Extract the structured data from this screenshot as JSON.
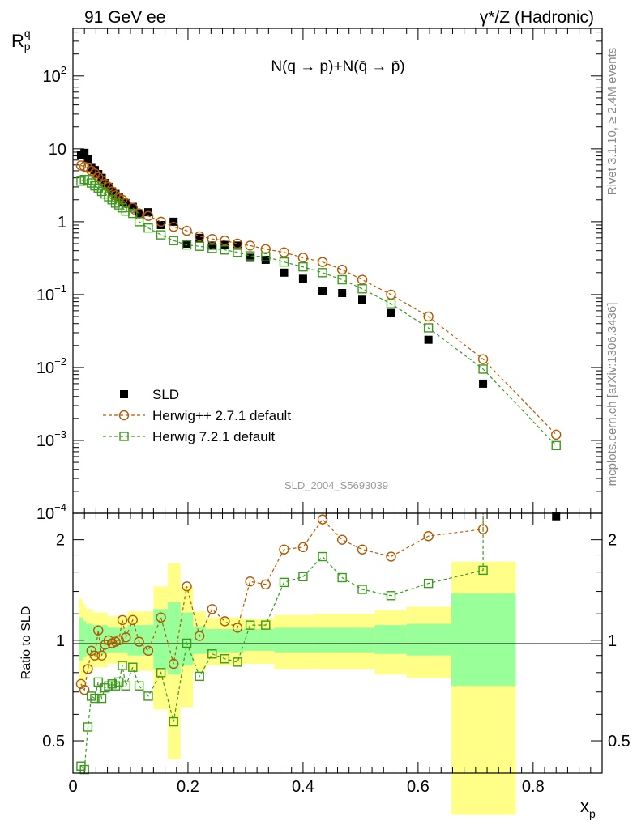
{
  "header": {
    "left": "91 GeV ee",
    "right": "γ*/Z (Hadronic)"
  },
  "side_text": {
    "rivet": "Rivet 3.1.10, ≥ 2.4M events",
    "mcplots": "mcplots.cern.ch [arXiv:1306.3436]"
  },
  "watermark": "SLD_2004_S5693039",
  "chart_data": [
    {
      "type": "scatter",
      "panel": "main",
      "title": "N(q → p)+N(q̄ → p̄)",
      "ylabel": "R",
      "ylabel_sup": "q",
      "ylabel_sub": "p",
      "y_scale": "log",
      "xlim": [
        0,
        0.92
      ],
      "ylim": [
        0.0001,
        450
      ],
      "y_ticks": [
        {
          "value": 0.0001,
          "base": "10",
          "exp": "−4"
        },
        {
          "value": 0.001,
          "base": "10",
          "exp": "−3"
        },
        {
          "value": 0.01,
          "base": "10",
          "exp": "−2"
        },
        {
          "value": 0.1,
          "base": "10",
          "exp": "−1"
        },
        {
          "value": 1,
          "base": "1",
          "exp": ""
        },
        {
          "value": 10,
          "base": "10",
          "exp": ""
        },
        {
          "value": 100,
          "base": "10",
          "exp": "2"
        }
      ],
      "legend_position": "lower-left",
      "series": [
        {
          "name": "SLD",
          "marker": "filled-square",
          "color": "#000000",
          "x": [
            0.014,
            0.02,
            0.026,
            0.032,
            0.038,
            0.044,
            0.05,
            0.056,
            0.062,
            0.068,
            0.074,
            0.08,
            0.086,
            0.092,
            0.104,
            0.115,
            0.131,
            0.153,
            0.175,
            0.198,
            0.22,
            0.242,
            0.264,
            0.286,
            0.308,
            0.335,
            0.367,
            0.4,
            0.434,
            0.468,
            0.503,
            0.553,
            0.618,
            0.713,
            0.84
          ],
          "y": [
            8.2,
            8.8,
            7.3,
            5.6,
            5.1,
            4.5,
            4.0,
            3.4,
            3.0,
            2.6,
            2.4,
            2.2,
            1.85,
            1.8,
            1.6,
            1.3,
            1.35,
            0.9,
            1.0,
            0.5,
            0.6,
            0.47,
            0.48,
            0.47,
            0.32,
            0.3,
            0.2,
            0.165,
            0.113,
            0.105,
            0.085,
            0.056,
            0.024,
            0.006,
            9.09e-05
          ]
        },
        {
          "name": "Herwig++ 2.7.1 default",
          "marker": "open-circle",
          "color": "#b35900",
          "x": [
            0.014,
            0.02,
            0.026,
            0.032,
            0.038,
            0.044,
            0.05,
            0.056,
            0.062,
            0.068,
            0.074,
            0.08,
            0.086,
            0.092,
            0.104,
            0.115,
            0.131,
            0.153,
            0.175,
            0.198,
            0.22,
            0.242,
            0.264,
            0.286,
            0.308,
            0.335,
            0.367,
            0.4,
            0.434,
            0.468,
            0.503,
            0.553,
            0.618,
            0.713,
            0.84
          ],
          "y": [
            5.9,
            5.7,
            5.5,
            5.0,
            4.6,
            4.1,
            3.7,
            3.3,
            3.0,
            2.6,
            2.3,
            2.1,
            2.0,
            1.8,
            1.55,
            1.3,
            1.2,
            1.0,
            0.85,
            0.75,
            0.63,
            0.58,
            0.55,
            0.5,
            0.47,
            0.42,
            0.38,
            0.32,
            0.28,
            0.22,
            0.16,
            0.1,
            0.05,
            0.013,
            0.0012
          ]
        },
        {
          "name": "Herwig 7.2.1 default",
          "marker": "open-square",
          "color": "#3a9a1a",
          "x": [
            0.014,
            0.02,
            0.026,
            0.032,
            0.038,
            0.044,
            0.05,
            0.056,
            0.062,
            0.068,
            0.074,
            0.08,
            0.086,
            0.092,
            0.104,
            0.115,
            0.131,
            0.153,
            0.175,
            0.198,
            0.22,
            0.242,
            0.264,
            0.286,
            0.308,
            0.335,
            0.367,
            0.4,
            0.434,
            0.468,
            0.503,
            0.553,
            0.618,
            0.713,
            0.84
          ],
          "y": [
            3.6,
            3.8,
            3.7,
            3.4,
            3.1,
            2.9,
            2.6,
            2.4,
            2.2,
            2.0,
            1.8,
            1.7,
            1.55,
            1.4,
            1.3,
            1.0,
            0.82,
            0.66,
            0.55,
            0.48,
            0.46,
            0.43,
            0.41,
            0.38,
            0.34,
            0.33,
            0.28,
            0.24,
            0.2,
            0.16,
            0.12,
            0.075,
            0.035,
            0.0095,
            0.00085
          ]
        }
      ]
    },
    {
      "type": "scatter",
      "panel": "ratio",
      "ylabel": "Ratio to SLD",
      "xlabel": "x",
      "xlabel_sub": "p",
      "y_scale": "log",
      "xlim": [
        0,
        0.92
      ],
      "ylim": [
        0.4,
        2.4
      ],
      "x_ticks": [
        {
          "value": 0,
          "label": "0"
        },
        {
          "value": 0.2,
          "label": "0.2"
        },
        {
          "value": 0.4,
          "label": "0.4"
        },
        {
          "value": 0.6,
          "label": "0.6"
        },
        {
          "value": 0.8,
          "label": "0.8"
        }
      ],
      "y_ticks": [
        {
          "value": 0.5,
          "label": "0.5"
        },
        {
          "value": 1,
          "label": "1"
        },
        {
          "value": 2,
          "label": "2"
        }
      ],
      "uncertainty_bands": {
        "stat_color": "#99ff99",
        "total_color": "#ffff88",
        "bins": [
          {
            "x0": 0.011,
            "x1": 0.017,
            "stat": [
              0.87,
              1.17
            ],
            "total": [
              0.73,
              1.33
            ]
          },
          {
            "x0": 0.017,
            "x1": 0.023,
            "stat": [
              0.89,
              1.14
            ],
            "total": [
              0.76,
              1.28
            ]
          },
          {
            "x0": 0.023,
            "x1": 0.035,
            "stat": [
              0.9,
              1.12
            ],
            "total": [
              0.8,
              1.24
            ]
          },
          {
            "x0": 0.035,
            "x1": 0.06,
            "stat": [
              0.91,
              1.11
            ],
            "total": [
              0.83,
              1.21
            ]
          },
          {
            "x0": 0.06,
            "x1": 0.095,
            "stat": [
              0.92,
              1.09
            ],
            "total": [
              0.85,
              1.18
            ]
          },
          {
            "x0": 0.095,
            "x1": 0.14,
            "stat": [
              0.9,
              1.11
            ],
            "total": [
              0.81,
              1.22
            ]
          },
          {
            "x0": 0.14,
            "x1": 0.165,
            "stat": [
              0.82,
              1.24
            ],
            "total": [
              0.62,
              1.45
            ]
          },
          {
            "x0": 0.165,
            "x1": 0.187,
            "stat": [
              0.79,
              1.3
            ],
            "total": [
              0.44,
              1.7
            ]
          },
          {
            "x0": 0.187,
            "x1": 0.209,
            "stat": [
              0.84,
              1.21
            ],
            "total": [
              0.63,
              1.45
            ]
          },
          {
            "x0": 0.209,
            "x1": 0.231,
            "stat": [
              0.91,
              1.1
            ],
            "total": [
              0.81,
              1.22
            ]
          },
          {
            "x0": 0.231,
            "x1": 0.297,
            "stat": [
              0.92,
              1.08
            ],
            "total": [
              0.84,
              1.17
            ]
          },
          {
            "x0": 0.297,
            "x1": 0.35,
            "stat": [
              0.93,
              1.08
            ],
            "total": [
              0.85,
              1.16
            ]
          },
          {
            "x0": 0.35,
            "x1": 0.418,
            "stat": [
              0.92,
              1.09
            ],
            "total": [
              0.82,
              1.19
            ]
          },
          {
            "x0": 0.418,
            "x1": 0.486,
            "stat": [
              0.92,
              1.09
            ],
            "total": [
              0.82,
              1.2
            ]
          },
          {
            "x0": 0.486,
            "x1": 0.525,
            "stat": [
              0.92,
              1.09
            ],
            "total": [
              0.82,
              1.2
            ]
          },
          {
            "x0": 0.525,
            "x1": 0.58,
            "stat": [
              0.91,
              1.11
            ],
            "total": [
              0.79,
              1.23
            ]
          },
          {
            "x0": 0.58,
            "x1": 0.658,
            "stat": [
              0.9,
              1.12
            ],
            "total": [
              0.77,
              1.26
            ]
          },
          {
            "x0": 0.658,
            "x1": 0.77,
            "stat": [
              0.73,
              1.38
            ],
            "total": [
              0.3,
              1.72
            ]
          }
        ]
      },
      "series": [
        {
          "name": "Herwig++ 2.7.1 default",
          "marker": "open-circle",
          "color": "#b35900",
          "x": [
            0.014,
            0.02,
            0.026,
            0.032,
            0.038,
            0.044,
            0.05,
            0.056,
            0.062,
            0.068,
            0.074,
            0.08,
            0.086,
            0.092,
            0.104,
            0.115,
            0.131,
            0.153,
            0.175,
            0.198,
            0.22,
            0.242,
            0.264,
            0.286,
            0.308,
            0.335,
            0.367,
            0.4,
            0.434,
            0.468,
            0.503,
            0.553,
            0.618,
            0.713
          ],
          "y": [
            0.74,
            0.71,
            0.82,
            0.93,
            0.9,
            1.07,
            0.9,
            0.97,
            1.0,
            0.98,
            0.99,
            1.0,
            1.15,
            1.02,
            1.15,
            0.99,
            0.93,
            1.17,
            0.85,
            1.45,
            1.03,
            1.24,
            1.14,
            1.09,
            1.5,
            1.47,
            1.87,
            1.9,
            2.3,
            2.0,
            1.87,
            1.78,
            2.05,
            2.15
          ]
        },
        {
          "name": "Herwig 7.2.1 default",
          "marker": "open-square",
          "color": "#3a9a1a",
          "x": [
            0.014,
            0.02,
            0.026,
            0.032,
            0.038,
            0.044,
            0.05,
            0.056,
            0.062,
            0.068,
            0.074,
            0.08,
            0.086,
            0.092,
            0.104,
            0.115,
            0.131,
            0.153,
            0.175,
            0.198,
            0.22,
            0.242,
            0.264,
            0.286,
            0.308,
            0.335,
            0.367,
            0.4,
            0.434,
            0.468,
            0.503,
            0.553,
            0.618,
            0.713
          ],
          "y": [
            0.42,
            0.41,
            0.55,
            0.68,
            0.67,
            0.75,
            0.67,
            0.72,
            0.73,
            0.74,
            0.73,
            0.75,
            0.84,
            0.73,
            0.83,
            0.73,
            0.68,
            0.8,
            0.57,
            0.98,
            0.78,
            0.91,
            0.88,
            0.86,
            1.11,
            1.11,
            1.49,
            1.55,
            1.78,
            1.54,
            1.42,
            1.36,
            1.48,
            1.62
          ]
        }
      ]
    }
  ]
}
